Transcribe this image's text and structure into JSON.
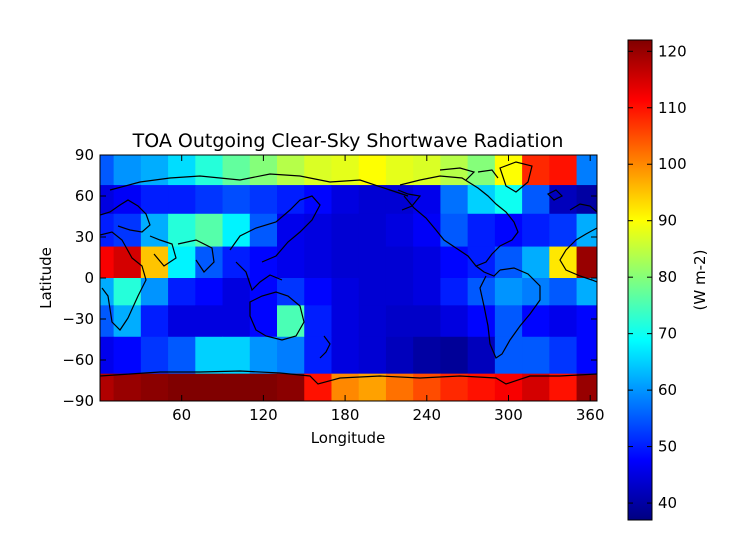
{
  "chart_data": {
    "type": "heatmap",
    "title": "TOA Outgoing Clear-Sky Shortwave Radiation",
    "xlabel": "Longitude",
    "ylabel": "Latitude",
    "xlim": [
      0,
      365
    ],
    "ylim": [
      -90,
      90
    ],
    "x_ticks": [
      "60",
      "120",
      "180",
      "240",
      "300",
      "360"
    ],
    "y_ticks": [
      "90",
      "60",
      "30",
      "0",
      "−30",
      "−60",
      "−90"
    ],
    "colorbar": {
      "label": "(W m-2)",
      "range": [
        37,
        122
      ],
      "ticks": [
        "40",
        "50",
        "60",
        "70",
        "80",
        "90",
        "100",
        "110",
        "120"
      ],
      "colormap": "jet"
    },
    "lon_edges": [
      0,
      10,
      30,
      50,
      70,
      90,
      110,
      130,
      150,
      170,
      190,
      210,
      230,
      250,
      270,
      290,
      310,
      330,
      350,
      365
    ],
    "lat_rows": [
      {
        "lat": [
          68,
          90
        ],
        "values": [
          55,
          60,
          62,
          66,
          72,
          77,
          80,
          84,
          87,
          88,
          90,
          88,
          87,
          84,
          80,
          90,
          108,
          110,
          58
        ]
      },
      {
        "lat": [
          47,
          68
        ],
        "values": [
          45,
          47,
          50,
          50,
          52,
          54,
          52,
          50,
          48,
          45,
          44,
          44,
          46,
          57,
          65,
          70,
          55,
          42,
          40
        ]
      },
      {
        "lat": [
          23,
          47
        ],
        "values": [
          50,
          52,
          62,
          72,
          76,
          68,
          55,
          46,
          45,
          44,
          44,
          45,
          47,
          55,
          50,
          48,
          50,
          52,
          62
        ]
      },
      {
        "lat": [
          0,
          23
        ],
        "values": [
          112,
          115,
          95,
          68,
          55,
          50,
          48,
          46,
          45,
          44,
          44,
          44,
          45,
          48,
          50,
          55,
          62,
          92,
          120
        ]
      },
      {
        "lat": [
          -20,
          0
        ],
        "values": [
          62,
          72,
          60,
          50,
          48,
          45,
          48,
          52,
          48,
          45,
          44,
          44,
          45,
          50,
          55,
          60,
          58,
          55,
          62
        ]
      },
      {
        "lat": [
          -43,
          -20
        ],
        "values": [
          55,
          62,
          50,
          45,
          45,
          45,
          48,
          75,
          50,
          45,
          44,
          43,
          43,
          45,
          48,
          55,
          48,
          46,
          48
        ]
      },
      {
        "lat": [
          -70,
          -43
        ],
        "values": [
          46,
          48,
          52,
          55,
          65,
          65,
          60,
          58,
          50,
          45,
          44,
          42,
          40,
          39,
          42,
          55,
          55,
          52,
          48
        ]
      },
      {
        "lat": [
          -90,
          -70
        ],
        "values": [
          118,
          120,
          121,
          122,
          122,
          122,
          122,
          121,
          110,
          100,
          98,
          102,
          105,
          108,
          110,
          112,
          115,
          110,
          120
        ]
      }
    ]
  }
}
